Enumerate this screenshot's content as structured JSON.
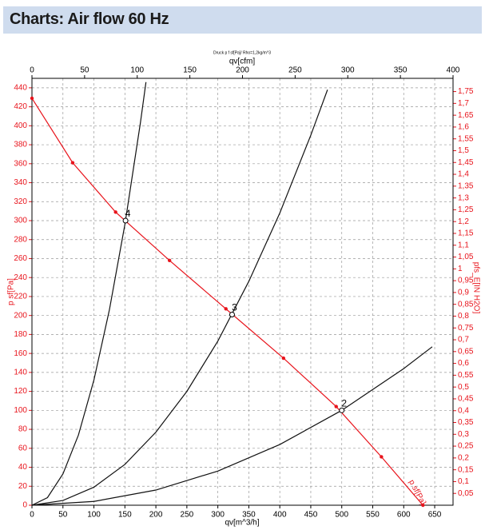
{
  "header": {
    "title": "Charts: Air flow 60 Hz"
  },
  "chart_data": {
    "type": "line",
    "title": "Druck p f sf[Pa]/ Rho=1,2kg/m^3",
    "x_label": "qv[m^3/h]",
    "x2_label": "qv[cfm]",
    "y_label": "p sf[Pa]",
    "y2_label": "pfs_E[IN H2O]",
    "curve_label": "p sf[Pa]",
    "xlim": [
      0,
      679.6
    ],
    "xticks": [
      0,
      50,
      100,
      150,
      200,
      250,
      300,
      350,
      400,
      450,
      500,
      550,
      600,
      650
    ],
    "x2lim": [
      0,
      400
    ],
    "x2ticks": [
      0,
      50,
      100,
      150,
      200,
      250,
      300,
      350,
      400
    ],
    "ylim": [
      0,
      450
    ],
    "yticks": [
      0,
      20,
      40,
      60,
      80,
      100,
      120,
      140,
      160,
      180,
      200,
      220,
      240,
      260,
      280,
      300,
      320,
      340,
      360,
      380,
      400,
      420,
      440
    ],
    "y2lim": [
      0,
      1.806
    ],
    "y2ticks": [
      {
        "value": 0.05,
        "label": "0,05"
      },
      {
        "value": 0.1,
        "label": "0,1"
      },
      {
        "value": 0.15,
        "label": "0,15"
      },
      {
        "value": 0.2,
        "label": "0,2"
      },
      {
        "value": 0.25,
        "label": "0,25"
      },
      {
        "value": 0.3,
        "label": "0,3"
      },
      {
        "value": 0.35,
        "label": "0,35"
      },
      {
        "value": 0.4,
        "label": "0,4"
      },
      {
        "value": 0.45,
        "label": "0,45"
      },
      {
        "value": 0.5,
        "label": "0,5"
      },
      {
        "value": 0.55,
        "label": "0,55"
      },
      {
        "value": 0.6,
        "label": "0,6"
      },
      {
        "value": 0.65,
        "label": "0,65"
      },
      {
        "value": 0.7,
        "label": "0,7"
      },
      {
        "value": 0.75,
        "label": "0,75"
      },
      {
        "value": 0.8,
        "label": "0,8"
      },
      {
        "value": 0.85,
        "label": "0,85"
      },
      {
        "value": 0.9,
        "label": "0,9"
      },
      {
        "value": 0.95,
        "label": "0,95"
      },
      1,
      {
        "value": 1.05,
        "label": "1,05"
      },
      {
        "value": 1.1,
        "label": "1,1"
      },
      {
        "value": 1.15,
        "label": "1,15"
      },
      {
        "value": 1.2,
        "label": "1,2"
      },
      {
        "value": 1.25,
        "label": "1,25"
      },
      {
        "value": 1.3,
        "label": "1,3"
      },
      {
        "value": 1.35,
        "label": "1,35"
      },
      {
        "value": 1.4,
        "label": "1,4"
      },
      {
        "value": 1.45,
        "label": "1,45"
      },
      {
        "value": 1.5,
        "label": "1,5"
      },
      {
        "value": 1.55,
        "label": "1,55"
      },
      {
        "value": 1.6,
        "label": "1,6"
      },
      {
        "value": 1.65,
        "label": "1,65"
      },
      {
        "value": 1.7,
        "label": "1,7"
      },
      {
        "value": 1.75,
        "label": "1,75"
      }
    ],
    "grid": true,
    "series": [
      {
        "color": "#e8141c",
        "markers": true,
        "x": [
          0,
          65.7,
          135,
          222,
          313,
          406,
          491,
          564,
          631
        ],
        "values": [
          429,
          361,
          309,
          258,
          207,
          155,
          104,
          51,
          0
        ]
      },
      {
        "color": "#111111",
        "markers": false,
        "x": [
          0,
          25,
          50,
          75,
          100,
          125,
          150,
          175,
          184
        ],
        "values": [
          0,
          8,
          33,
          74,
          132,
          206,
          296,
          403,
          446
        ]
      },
      {
        "color": "#111111",
        "markers": false,
        "x": [
          0,
          50,
          100,
          150,
          200,
          250,
          300,
          350,
          400,
          450,
          477
        ],
        "values": [
          0,
          5,
          19,
          43,
          77,
          120,
          173,
          236,
          308,
          390,
          438
        ]
      },
      {
        "color": "#111111",
        "markers": false,
        "x": [
          0,
          100,
          200,
          300,
          400,
          500,
          600,
          646
        ],
        "values": [
          0,
          4,
          16,
          36,
          64,
          100,
          144,
          167
        ]
      }
    ],
    "points": [
      {
        "label": "4",
        "x": 151,
        "y": 300
      },
      {
        "label": "3",
        "x": 323,
        "y": 201
      },
      {
        "label": "2",
        "x": 500,
        "y": 100
      }
    ]
  }
}
